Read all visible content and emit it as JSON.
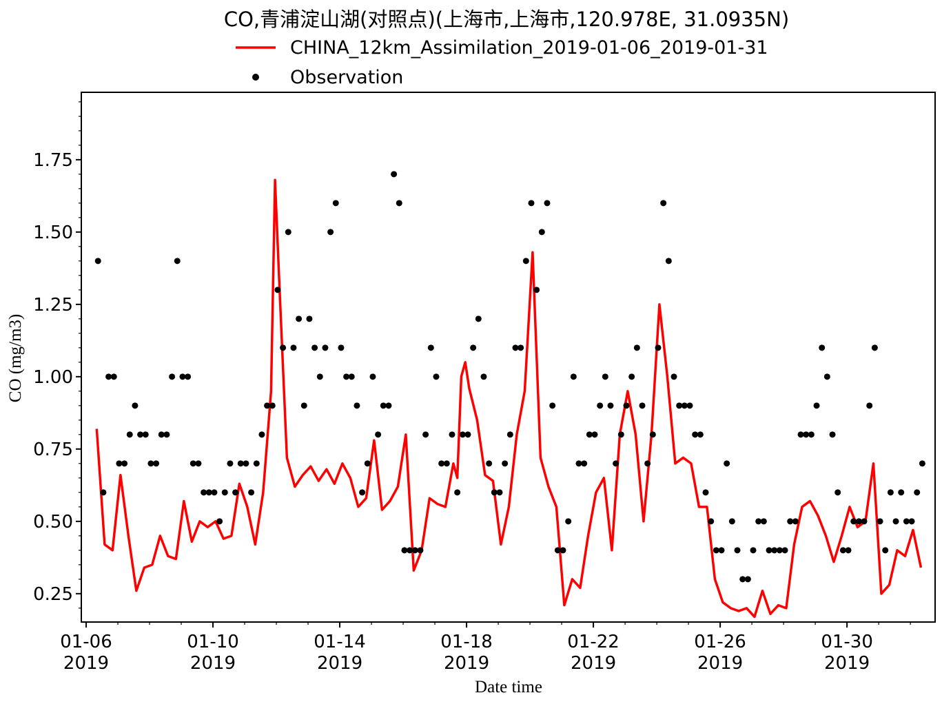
{
  "chart_data": {
    "type": "line",
    "title": "CO,青浦淀山湖(对照点)(上海市,上海市,120.978E, 31.0935N)",
    "x_label": "Date time",
    "y_label": "CO (mg/m3)",
    "xlim": [
      "2019-01-05T20:21",
      "2019-02-01T18:43"
    ],
    "ylim": [
      0.152,
      1.983
    ],
    "xticks": [
      {
        "value": "2019-01-06T00:00",
        "label": "01-06\n2019"
      },
      {
        "value": "2019-01-10T00:00",
        "label": "01-10\n2019"
      },
      {
        "value": "2019-01-14T00:00",
        "label": "01-14\n2019"
      },
      {
        "value": "2019-01-18T00:00",
        "label": "01-18\n2019"
      },
      {
        "value": "2019-01-22T00:00",
        "label": "01-22\n2019"
      },
      {
        "value": "2019-01-26T00:00",
        "label": "01-26\n2019"
      },
      {
        "value": "2019-01-30T00:00",
        "label": "01-30\n2019"
      }
    ],
    "xminorticks": [
      "2019-01-06T00:00",
      "2019-01-07T00:00",
      "2019-01-08T00:00",
      "2019-01-09T00:00",
      "2019-01-10T00:00",
      "2019-01-11T00:00",
      "2019-01-12T00:00",
      "2019-01-13T00:00",
      "2019-01-14T00:00",
      "2019-01-15T00:00",
      "2019-01-16T00:00",
      "2019-01-17T00:00",
      "2019-01-18T00:00",
      "2019-01-19T00:00",
      "2019-01-20T00:00",
      "2019-01-21T00:00",
      "2019-01-22T00:00",
      "2019-01-23T00:00",
      "2019-01-24T00:00",
      "2019-01-25T00:00",
      "2019-01-26T00:00",
      "2019-01-27T00:00",
      "2019-01-28T00:00",
      "2019-01-29T00:00",
      "2019-01-30T00:00",
      "2019-01-31T00:00",
      "2019-02-01T00:00"
    ],
    "yticks": [
      {
        "value": 0.25,
        "label": "0.25"
      },
      {
        "value": 0.5,
        "label": "0.50"
      },
      {
        "value": 0.75,
        "label": "0.75"
      },
      {
        "value": 1,
        "label": "1.00"
      },
      {
        "value": 1.25,
        "label": "1.25"
      },
      {
        "value": 1.5,
        "label": "1.50"
      },
      {
        "value": 1.75,
        "label": "1.75"
      }
    ],
    "yminorticks": [
      0.2,
      0.3,
      0.35,
      0.4,
      0.45,
      0.55,
      0.6,
      0.65,
      0.7,
      0.8,
      0.85,
      0.9,
      0.95,
      1.05,
      1.1,
      1.15,
      1.2,
      1.3,
      1.35,
      1.4,
      1.45,
      1.55,
      1.6,
      1.65,
      1.7,
      1.8,
      1.85,
      1.9,
      1.95
    ],
    "grid": false,
    "legend": "top",
    "series": [
      {
        "name": "CHINA_12km_Assimilation_2019-01-06_2019-01-31",
        "color": "#ff0000",
        "marker": "none",
        "x": [
          "2019-01-06T08:00",
          "2019-01-06T14:00",
          "2019-01-06T20:00",
          "2019-01-07T02:00",
          "2019-01-07T08:00",
          "2019-01-07T14:00",
          "2019-01-07T20:00",
          "2019-01-08T02:00",
          "2019-01-08T08:00",
          "2019-01-08T14:00",
          "2019-01-08T20:00",
          "2019-01-09T02:00",
          "2019-01-09T08:00",
          "2019-01-09T14:00",
          "2019-01-09T20:00",
          "2019-01-10T02:00",
          "2019-01-10T08:00",
          "2019-01-10T14:00",
          "2019-01-10T20:00",
          "2019-01-11T02:00",
          "2019-01-11T08:00",
          "2019-01-11T14:00",
          "2019-01-11T20:00",
          "2019-01-11T23:00",
          "2019-01-12T02:00",
          "2019-01-12T08:00",
          "2019-01-12T14:00",
          "2019-01-12T20:00",
          "2019-01-13T02:00",
          "2019-01-13T08:00",
          "2019-01-13T14:00",
          "2019-01-13T20:00",
          "2019-01-14T02:00",
          "2019-01-14T08:00",
          "2019-01-14T14:00",
          "2019-01-14T20:00",
          "2019-01-15T02:00",
          "2019-01-15T08:00",
          "2019-01-15T14:00",
          "2019-01-15T20:00",
          "2019-01-16T02:00",
          "2019-01-16T08:00",
          "2019-01-16T14:00",
          "2019-01-16T20:00",
          "2019-01-17T02:00",
          "2019-01-17T08:00",
          "2019-01-17T14:00",
          "2019-01-17T17:00",
          "2019-01-17T20:00",
          "2019-01-17T23:00",
          "2019-01-18T02:00",
          "2019-01-18T08:00",
          "2019-01-18T14:00",
          "2019-01-18T20:00",
          "2019-01-19T02:00",
          "2019-01-19T08:00",
          "2019-01-19T14:00",
          "2019-01-19T20:00",
          "2019-01-20T02:00",
          "2019-01-20T08:00",
          "2019-01-20T14:00",
          "2019-01-20T20:00",
          "2019-01-21T02:00",
          "2019-01-21T08:00",
          "2019-01-21T14:00",
          "2019-01-21T20:00",
          "2019-01-22T02:00",
          "2019-01-22T08:00",
          "2019-01-22T14:00",
          "2019-01-22T20:00",
          "2019-01-23T02:00",
          "2019-01-23T08:00",
          "2019-01-23T14:00",
          "2019-01-23T20:00",
          "2019-01-24T02:00",
          "2019-01-24T08:00",
          "2019-01-24T14:00",
          "2019-01-24T20:00",
          "2019-01-25T02:00",
          "2019-01-25T08:00",
          "2019-01-25T14:00",
          "2019-01-25T20:00",
          "2019-01-26T02:00",
          "2019-01-26T08:00",
          "2019-01-26T14:00",
          "2019-01-26T20:00",
          "2019-01-27T02:00",
          "2019-01-27T08:00",
          "2019-01-27T14:00",
          "2019-01-27T20:00",
          "2019-01-28T02:00",
          "2019-01-28T08:00",
          "2019-01-28T14:00",
          "2019-01-28T20:00",
          "2019-01-29T02:00",
          "2019-01-29T08:00",
          "2019-01-29T14:00",
          "2019-01-29T20:00",
          "2019-01-30T02:00",
          "2019-01-30T08:00",
          "2019-01-30T14:00",
          "2019-01-30T20:00",
          "2019-01-31T02:00",
          "2019-01-31T08:00",
          "2019-01-31T14:00",
          "2019-01-31T20:00",
          "2019-02-01T02:00",
          "2019-02-01T08:00"
        ],
        "values": [
          0.82,
          0.42,
          0.4,
          0.66,
          0.45,
          0.26,
          0.34,
          0.35,
          0.45,
          0.38,
          0.37,
          0.57,
          0.43,
          0.5,
          0.48,
          0.5,
          0.44,
          0.45,
          0.63,
          0.55,
          0.42,
          0.6,
          0.95,
          1.68,
          1.35,
          0.72,
          0.62,
          0.66,
          0.69,
          0.64,
          0.68,
          0.63,
          0.7,
          0.65,
          0.55,
          0.58,
          0.78,
          0.54,
          0.57,
          0.62,
          0.8,
          0.33,
          0.4,
          0.58,
          0.56,
          0.55,
          0.7,
          0.65,
          1.0,
          1.05,
          0.96,
          0.85,
          0.66,
          0.64,
          0.42,
          0.55,
          0.8,
          0.95,
          1.43,
          0.72,
          0.62,
          0.55,
          0.21,
          0.3,
          0.27,
          0.45,
          0.6,
          0.65,
          0.4,
          0.8,
          0.95,
          0.8,
          0.5,
          0.8,
          1.25,
          1.0,
          0.7,
          0.72,
          0.7,
          0.55,
          0.55,
          0.3,
          0.22,
          0.2,
          0.19,
          0.2,
          0.17,
          0.26,
          0.18,
          0.21,
          0.2,
          0.42,
          0.55,
          0.57,
          0.52,
          0.45,
          0.36,
          0.45,
          0.55,
          0.48,
          0.5,
          0.7,
          0.25,
          0.28,
          0.4,
          0.38,
          0.47,
          0.34
        ]
      },
      {
        "name": "Observation",
        "color": "#000000",
        "marker": "o",
        "x": [
          "2019-01-06T09:00",
          "2019-01-06T13:00",
          "2019-01-06T17:00",
          "2019-01-06T21:00",
          "2019-01-07T01:00",
          "2019-01-07T05:00",
          "2019-01-07T09:00",
          "2019-01-07T13:00",
          "2019-01-07T17:00",
          "2019-01-07T21:00",
          "2019-01-08T01:00",
          "2019-01-08T05:00",
          "2019-01-08T09:00",
          "2019-01-08T13:00",
          "2019-01-08T17:00",
          "2019-01-08T21:00",
          "2019-01-09T01:00",
          "2019-01-09T05:00",
          "2019-01-09T09:00",
          "2019-01-09T13:00",
          "2019-01-09T17:00",
          "2019-01-09T21:00",
          "2019-01-10T01:00",
          "2019-01-10T05:00",
          "2019-01-10T09:00",
          "2019-01-10T13:00",
          "2019-01-10T17:00",
          "2019-01-10T21:00",
          "2019-01-11T01:00",
          "2019-01-11T05:00",
          "2019-01-11T09:00",
          "2019-01-11T13:00",
          "2019-01-11T17:00",
          "2019-01-11T21:00",
          "2019-01-12T01:00",
          "2019-01-12T05:00",
          "2019-01-12T09:00",
          "2019-01-12T13:00",
          "2019-01-12T17:00",
          "2019-01-12T21:00",
          "2019-01-13T01:00",
          "2019-01-13T05:00",
          "2019-01-13T09:00",
          "2019-01-13T13:00",
          "2019-01-13T17:00",
          "2019-01-13T21:00",
          "2019-01-14T01:00",
          "2019-01-14T05:00",
          "2019-01-14T09:00",
          "2019-01-14T13:00",
          "2019-01-14T17:00",
          "2019-01-14T21:00",
          "2019-01-15T01:00",
          "2019-01-15T05:00",
          "2019-01-15T09:00",
          "2019-01-15T13:00",
          "2019-01-15T17:00",
          "2019-01-15T21:00",
          "2019-01-16T01:00",
          "2019-01-16T05:00",
          "2019-01-16T09:00",
          "2019-01-16T13:00",
          "2019-01-16T17:00",
          "2019-01-16T21:00",
          "2019-01-17T01:00",
          "2019-01-17T05:00",
          "2019-01-17T09:00",
          "2019-01-17T13:00",
          "2019-01-17T17:00",
          "2019-01-17T21:00",
          "2019-01-18T01:00",
          "2019-01-18T05:00",
          "2019-01-18T09:00",
          "2019-01-18T13:00",
          "2019-01-18T17:00",
          "2019-01-18T21:00",
          "2019-01-19T01:00",
          "2019-01-19T05:00",
          "2019-01-19T09:00",
          "2019-01-19T13:00",
          "2019-01-19T17:00",
          "2019-01-19T21:00",
          "2019-01-20T01:00",
          "2019-01-20T05:00",
          "2019-01-20T09:00",
          "2019-01-20T13:00",
          "2019-01-20T17:00",
          "2019-01-20T21:00",
          "2019-01-21T01:00",
          "2019-01-21T05:00",
          "2019-01-21T09:00",
          "2019-01-21T13:00",
          "2019-01-21T17:00",
          "2019-01-21T21:00",
          "2019-01-22T01:00",
          "2019-01-22T05:00",
          "2019-01-22T09:00",
          "2019-01-22T13:00",
          "2019-01-22T17:00",
          "2019-01-22T21:00",
          "2019-01-23T01:00",
          "2019-01-23T05:00",
          "2019-01-23T09:00",
          "2019-01-23T13:00",
          "2019-01-23T17:00",
          "2019-01-23T21:00",
          "2019-01-24T01:00",
          "2019-01-24T05:00",
          "2019-01-24T09:00",
          "2019-01-24T13:00",
          "2019-01-24T17:00",
          "2019-01-24T21:00",
          "2019-01-25T01:00",
          "2019-01-25T05:00",
          "2019-01-25T09:00",
          "2019-01-25T13:00",
          "2019-01-25T17:00",
          "2019-01-25T21:00",
          "2019-01-26T01:00",
          "2019-01-26T05:00",
          "2019-01-26T09:00",
          "2019-01-26T13:00",
          "2019-01-26T17:00",
          "2019-01-26T21:00",
          "2019-01-27T01:00",
          "2019-01-27T05:00",
          "2019-01-27T09:00",
          "2019-01-27T13:00",
          "2019-01-27T17:00",
          "2019-01-27T21:00",
          "2019-01-28T01:00",
          "2019-01-28T05:00",
          "2019-01-28T09:00",
          "2019-01-28T13:00",
          "2019-01-28T17:00",
          "2019-01-28T21:00",
          "2019-01-29T01:00",
          "2019-01-29T05:00",
          "2019-01-29T09:00",
          "2019-01-29T13:00",
          "2019-01-29T17:00",
          "2019-01-29T21:00",
          "2019-01-30T01:00",
          "2019-01-30T05:00",
          "2019-01-30T09:00",
          "2019-01-30T13:00",
          "2019-01-30T17:00",
          "2019-01-30T21:00",
          "2019-01-31T01:00",
          "2019-01-31T05:00",
          "2019-01-31T09:00",
          "2019-01-31T13:00",
          "2019-01-31T17:00",
          "2019-01-31T21:00",
          "2019-02-01T01:00",
          "2019-02-01T05:00",
          "2019-02-01T09:00"
        ],
        "values": [
          1.4,
          0.6,
          1.0,
          1.0,
          0.7,
          0.7,
          0.8,
          0.9,
          0.8,
          0.8,
          0.7,
          0.7,
          0.8,
          0.8,
          1.0,
          1.4,
          1.0,
          1.0,
          0.7,
          0.7,
          0.6,
          0.6,
          0.6,
          0.5,
          0.6,
          0.7,
          0.6,
          0.7,
          0.7,
          0.6,
          0.7,
          0.8,
          0.9,
          0.9,
          1.3,
          1.1,
          1.5,
          1.1,
          1.2,
          0.9,
          1.2,
          1.1,
          1.0,
          1.1,
          1.5,
          1.6,
          1.1,
          1.0,
          1.0,
          0.9,
          0.6,
          0.7,
          1.0,
          0.8,
          0.9,
          0.9,
          1.7,
          1.6,
          0.4,
          0.4,
          0.4,
          0.4,
          0.8,
          1.1,
          1.0,
          0.7,
          0.7,
          0.8,
          0.6,
          0.8,
          0.8,
          1.1,
          1.2,
          1.0,
          0.7,
          0.6,
          0.6,
          0.7,
          0.8,
          1.1,
          1.1,
          1.4,
          1.6,
          1.3,
          1.5,
          1.6,
          0.9,
          0.4,
          0.4,
          0.5,
          1.0,
          0.7,
          0.7,
          0.8,
          0.8,
          0.9,
          1.0,
          0.9,
          0.7,
          0.8,
          0.9,
          1.0,
          1.1,
          0.9,
          0.7,
          0.8,
          1.1,
          1.6,
          1.4,
          1.0,
          0.9,
          0.9,
          0.9,
          0.8,
          0.8,
          0.6,
          0.5,
          0.4,
          0.4,
          0.7,
          0.5,
          0.4,
          0.3,
          0.3,
          0.4,
          0.5,
          0.5,
          0.4,
          0.4,
          0.4,
          0.4,
          0.5,
          0.5,
          0.8,
          0.8,
          0.8,
          0.9,
          1.1,
          1.0,
          0.8,
          0.6,
          0.4,
          0.4,
          0.5,
          0.5,
          0.5,
          0.9,
          1.1,
          0.5,
          0.4,
          0.6,
          0.5,
          0.6,
          0.5,
          0.5,
          0.6,
          0.7
        ]
      }
    ]
  }
}
